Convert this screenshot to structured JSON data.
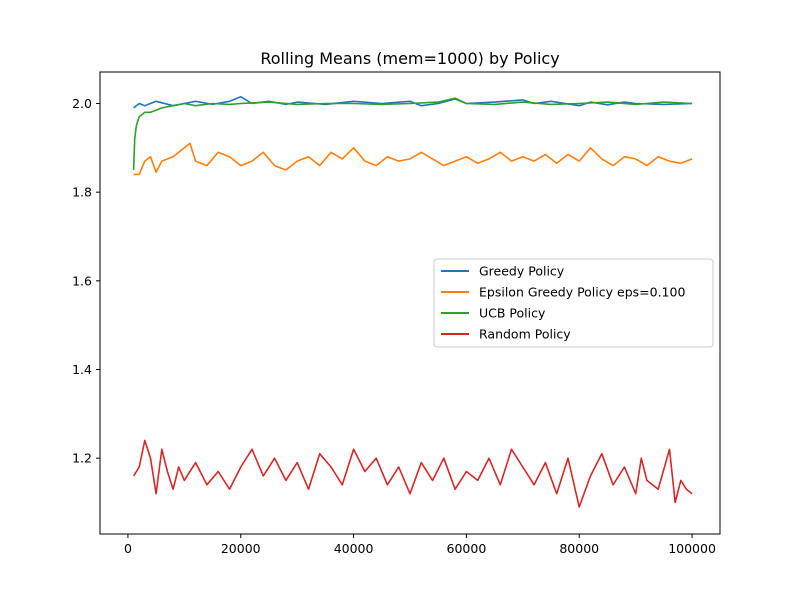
{
  "chart_data": {
    "type": "line",
    "title": "Rolling Means (mem=1000) by Policy",
    "xlabel": "",
    "ylabel": "",
    "xlim": [
      -4950,
      104950
    ],
    "ylim": [
      1.029,
      2.071
    ],
    "xticks": [
      0,
      20000,
      40000,
      60000,
      80000,
      100000
    ],
    "xtick_labels": [
      "0",
      "20000",
      "40000",
      "60000",
      "80000",
      "100000"
    ],
    "yticks": [
      1.2,
      1.4,
      1.6,
      1.8,
      2.0
    ],
    "ytick_labels": [
      "1.2",
      "1.4",
      "1.6",
      "1.8",
      "2.0"
    ],
    "grid": false,
    "legend_position": "center-right",
    "series": [
      {
        "name": "Greedy Policy",
        "color": "#1f77b4",
        "x": [
          1000,
          2000,
          3000,
          5000,
          8000,
          10000,
          12000,
          15000,
          18000,
          20000,
          22000,
          25000,
          28000,
          30000,
          35000,
          40000,
          45000,
          50000,
          52000,
          55000,
          58000,
          60000,
          65000,
          70000,
          72000,
          75000,
          80000,
          82000,
          85000,
          88000,
          90000,
          95000,
          100000
        ],
        "values": [
          1.99,
          2.0,
          1.995,
          2.005,
          1.995,
          2.0,
          2.005,
          1.998,
          2.005,
          2.015,
          2.0,
          2.005,
          1.998,
          2.003,
          1.998,
          2.005,
          2.0,
          2.005,
          1.995,
          2.0,
          2.01,
          2.0,
          2.003,
          2.008,
          2.0,
          2.005,
          1.995,
          2.003,
          1.997,
          2.003,
          2.0,
          1.998,
          2.0
        ]
      },
      {
        "name": "Epsilon Greedy Policy eps=0.100",
        "color": "#ff7f0e",
        "x": [
          1000,
          2000,
          3000,
          4000,
          5000,
          6000,
          8000,
          10000,
          11000,
          12000,
          14000,
          16000,
          18000,
          20000,
          22000,
          24000,
          26000,
          28000,
          30000,
          32000,
          34000,
          36000,
          38000,
          40000,
          42000,
          44000,
          46000,
          48000,
          50000,
          52000,
          54000,
          56000,
          58000,
          60000,
          62000,
          64000,
          66000,
          68000,
          70000,
          72000,
          74000,
          76000,
          78000,
          80000,
          82000,
          84000,
          86000,
          88000,
          90000,
          92000,
          94000,
          96000,
          98000,
          100000
        ],
        "values": [
          1.84,
          1.84,
          1.87,
          1.88,
          1.845,
          1.87,
          1.88,
          1.9,
          1.91,
          1.87,
          1.86,
          1.89,
          1.88,
          1.86,
          1.87,
          1.89,
          1.86,
          1.85,
          1.87,
          1.88,
          1.86,
          1.89,
          1.875,
          1.9,
          1.87,
          1.86,
          1.88,
          1.87,
          1.875,
          1.89,
          1.875,
          1.86,
          1.87,
          1.88,
          1.865,
          1.875,
          1.89,
          1.87,
          1.88,
          1.87,
          1.885,
          1.865,
          1.885,
          1.87,
          1.9,
          1.875,
          1.86,
          1.88,
          1.875,
          1.86,
          1.88,
          1.87,
          1.865,
          1.875
        ]
      },
      {
        "name": "UCB Policy",
        "color": "#2ca02c",
        "x": [
          1000,
          1200,
          1500,
          2000,
          2500,
          3000,
          4000,
          5000,
          6000,
          8000,
          10000,
          12000,
          15000,
          18000,
          20000,
          25000,
          30000,
          35000,
          40000,
          45000,
          50000,
          55000,
          58000,
          60000,
          65000,
          70000,
          75000,
          80000,
          85000,
          90000,
          95000,
          100000
        ],
        "values": [
          1.85,
          1.92,
          1.95,
          1.97,
          1.975,
          1.98,
          1.98,
          1.985,
          1.99,
          1.995,
          2.0,
          1.995,
          2.0,
          1.998,
          2.0,
          2.003,
          1.998,
          2.0,
          2.0,
          1.998,
          2.0,
          2.003,
          2.012,
          2.0,
          1.998,
          2.003,
          1.998,
          2.0,
          2.003,
          1.998,
          2.003,
          2.0
        ]
      },
      {
        "name": "Random Policy",
        "color": "#d62728",
        "x": [
          1000,
          2000,
          3000,
          4000,
          5000,
          6000,
          7000,
          8000,
          9000,
          10000,
          12000,
          14000,
          16000,
          18000,
          20000,
          22000,
          24000,
          26000,
          28000,
          30000,
          32000,
          34000,
          36000,
          38000,
          40000,
          42000,
          44000,
          46000,
          48000,
          50000,
          52000,
          54000,
          56000,
          58000,
          60000,
          62000,
          64000,
          66000,
          68000,
          70000,
          72000,
          74000,
          76000,
          78000,
          80000,
          82000,
          84000,
          86000,
          88000,
          90000,
          91000,
          92000,
          94000,
          96000,
          97000,
          98000,
          99000,
          100000
        ],
        "values": [
          1.16,
          1.18,
          1.24,
          1.2,
          1.12,
          1.22,
          1.17,
          1.13,
          1.18,
          1.15,
          1.19,
          1.14,
          1.17,
          1.13,
          1.18,
          1.22,
          1.16,
          1.2,
          1.15,
          1.19,
          1.13,
          1.21,
          1.18,
          1.14,
          1.22,
          1.17,
          1.2,
          1.14,
          1.18,
          1.12,
          1.19,
          1.15,
          1.2,
          1.13,
          1.17,
          1.15,
          1.2,
          1.14,
          1.22,
          1.18,
          1.14,
          1.19,
          1.12,
          1.2,
          1.09,
          1.16,
          1.21,
          1.14,
          1.18,
          1.12,
          1.2,
          1.15,
          1.13,
          1.22,
          1.1,
          1.15,
          1.13,
          1.12
        ]
      }
    ]
  }
}
